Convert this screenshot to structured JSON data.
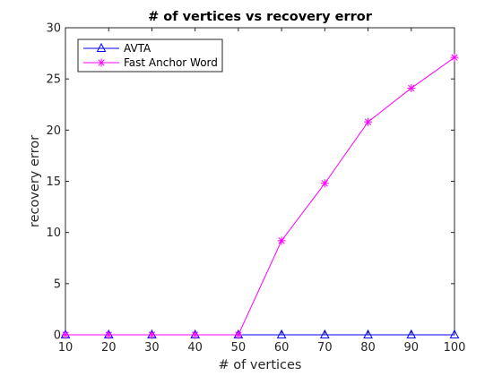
{
  "chart_data": {
    "type": "line",
    "title": "# of vertices vs recovery error",
    "xlabel": "# of vertices",
    "ylabel": "recovery error",
    "x": [
      10,
      20,
      30,
      40,
      50,
      60,
      70,
      80,
      90,
      100
    ],
    "xticks": [
      "10",
      "20",
      "30",
      "40",
      "50",
      "60",
      "70",
      "80",
      "90",
      "100"
    ],
    "yticks": [
      "0",
      "5",
      "10",
      "15",
      "20",
      "25",
      "30"
    ],
    "xlim": [
      10,
      100
    ],
    "ylim": [
      0,
      30
    ],
    "grid": false,
    "legend_position": "top-left",
    "series": [
      {
        "name": "AVTA",
        "color": "#0000ff",
        "marker": "triangle",
        "values": [
          0,
          0,
          0,
          0,
          0,
          0,
          0,
          0,
          0,
          0
        ]
      },
      {
        "name": "Fast Anchor Word",
        "color": "#ff00ff",
        "marker": "asterisk",
        "values": [
          0,
          0,
          0,
          0,
          0,
          9.2,
          14.8,
          20.8,
          24.1,
          27.1
        ]
      }
    ]
  }
}
